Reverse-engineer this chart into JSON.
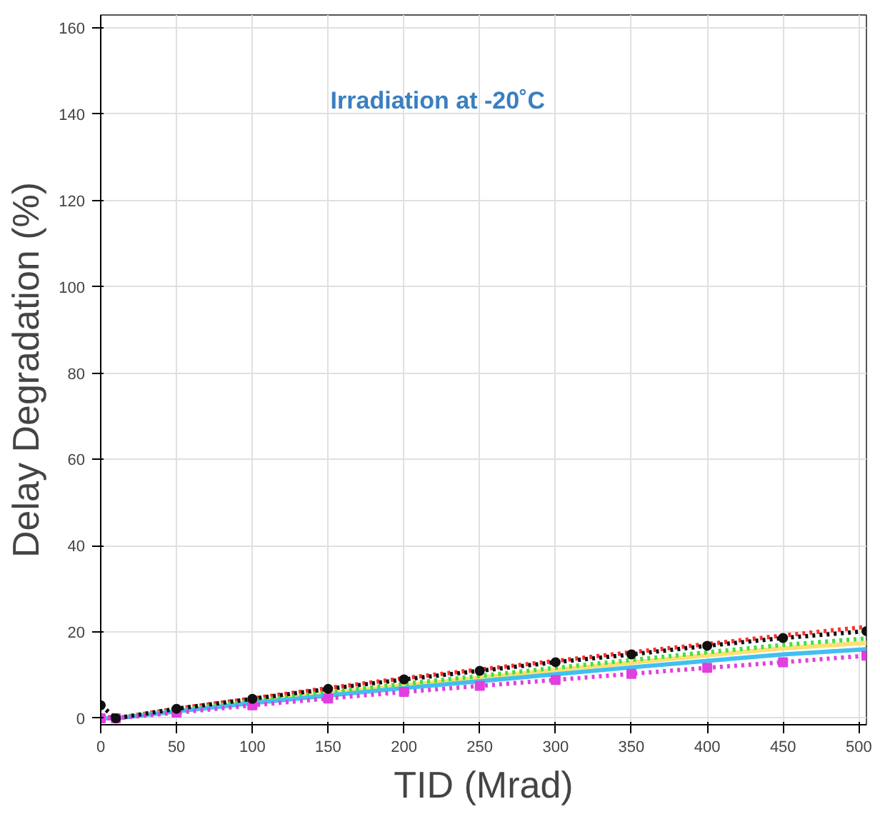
{
  "chart_data": {
    "type": "line",
    "xlabel": "TID (Mrad)",
    "ylabel": "Delay Degradation (%)",
    "annotations": [
      "Irradiation at -20˚C"
    ],
    "x": [
      0,
      10,
      50,
      100,
      150,
      200,
      250,
      300,
      350,
      400,
      450,
      505
    ],
    "series": [
      {
        "color": "#ff3030",
        "line_style": "dotted",
        "marker": "none",
        "values": [
          0.5,
          0,
          2.2,
          4.6,
          7,
          9.3,
          11.3,
          13.3,
          15.3,
          17.2,
          19.2,
          21.2
        ]
      },
      {
        "color": "#ffe070",
        "line_style": "solid",
        "marker": "none",
        "values": [
          0,
          0,
          1.7,
          3.8,
          5.8,
          7.6,
          9.4,
          11.2,
          12.9,
          14.6,
          16.2,
          17.5
        ]
      },
      {
        "color": "#40e040",
        "line_style": "dotted",
        "marker": "none",
        "values": [
          0,
          0,
          1.8,
          4,
          6,
          8,
          9.8,
          11.7,
          13.5,
          15.3,
          17,
          18.5
        ]
      },
      {
        "color": "#40c0f0",
        "line_style": "solid",
        "marker": "none",
        "values": [
          0,
          0,
          1.6,
          3.5,
          5.3,
          7,
          8.6,
          10.2,
          11.8,
          13.3,
          14.8,
          16
        ]
      },
      {
        "color": "#e040e0",
        "line_style": "dotted",
        "marker": "square",
        "values": [
          0,
          0,
          1.3,
          3,
          4.6,
          6.1,
          7.5,
          8.9,
          10.3,
          11.7,
          13,
          14.5
        ]
      },
      {
        "color": "#101010",
        "line_style": "dotted",
        "marker": "circle",
        "values": [
          3,
          0,
          2.2,
          4.5,
          6.8,
          9,
          11,
          13,
          14.8,
          16.8,
          18.6,
          20.2
        ]
      }
    ],
    "xlim": [
      0,
      505
    ],
    "ylim": [
      -1.5,
      163
    ],
    "xticks": [
      0,
      50,
      100,
      150,
      200,
      250,
      300,
      350,
      400,
      450,
      500
    ],
    "yticks": [
      0,
      20,
      40,
      60,
      80,
      100,
      120,
      140,
      160
    ],
    "grid": true
  }
}
